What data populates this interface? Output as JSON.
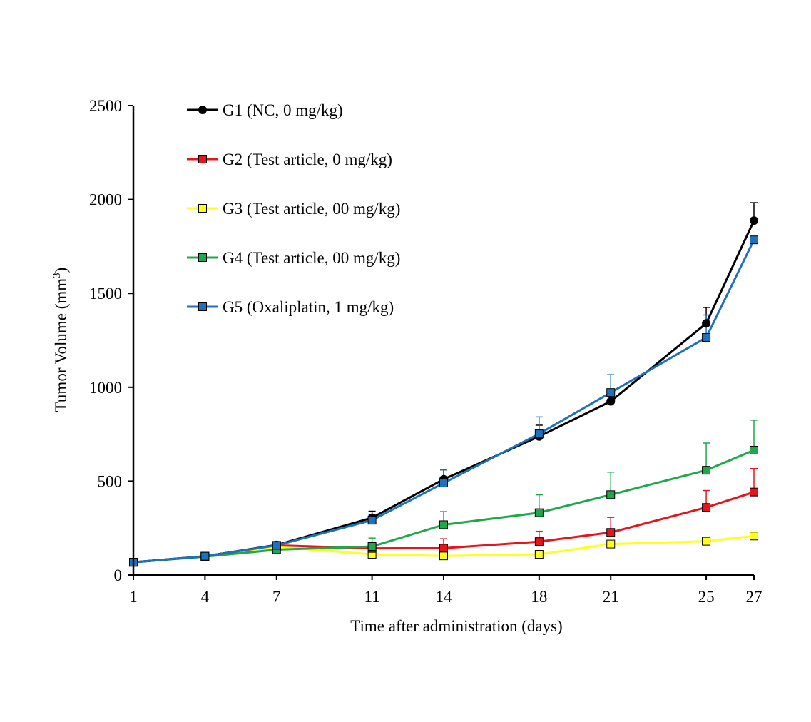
{
  "chart_data": {
    "type": "line",
    "title": "",
    "xlabel": "Time after administration (days)",
    "ylabel": "Tumor Volume (mm³)",
    "ylabel_main": "Tumor Volume (mm",
    "ylabel_sup": "3",
    "ylabel_end": ")",
    "x": [
      1,
      4,
      7,
      11,
      14,
      18,
      21,
      25,
      27
    ],
    "x_tick_labels": [
      "1",
      "4",
      "7",
      "11",
      "14",
      "18",
      "21",
      "25",
      "27"
    ],
    "ylim": [
      0,
      2500
    ],
    "y_ticks": [
      0,
      500,
      1000,
      1500,
      2000,
      2500
    ],
    "y_tick_labels": [
      "0",
      "500",
      "1000",
      "1500",
      "2000",
      "2500"
    ],
    "grid": false,
    "legend_position": "top-left",
    "series": [
      {
        "name": "G1 (NC, 0 mg/kg)",
        "color": "#000000",
        "marker": "circle",
        "marker_fill": "#000000",
        "values": [
          68,
          100,
          160,
          305,
          510,
          738,
          925,
          1340,
          1888
        ],
        "error": [
          0,
          0,
          0,
          35,
          50,
          60,
          0,
          85,
          95
        ]
      },
      {
        "name": "G2 (Test article, 0 mg/kg)",
        "color": "#e8141b",
        "marker": "square",
        "marker_fill": "#e8141b",
        "values": [
          68,
          100,
          158,
          142,
          143,
          178,
          227,
          360,
          442
        ],
        "error": [
          0,
          0,
          0,
          0,
          50,
          55,
          80,
          90,
          125
        ]
      },
      {
        "name": "G3 (Test article, 00 mg/kg)",
        "color": "#ffff1a",
        "marker": "square",
        "marker_fill": "#ffff1a",
        "values": [
          68,
          100,
          150,
          110,
          102,
          110,
          165,
          180,
          208
        ],
        "error": [
          0,
          0,
          0,
          0,
          0,
          0,
          0,
          0,
          0
        ]
      },
      {
        "name": "G4 (Test article, 00 mg/kg)",
        "color": "#1fa84a",
        "marker": "square",
        "marker_fill": "#1fa84a",
        "values": [
          68,
          98,
          135,
          152,
          268,
          332,
          428,
          558,
          665
        ],
        "error": [
          0,
          0,
          0,
          45,
          70,
          95,
          120,
          145,
          160
        ]
      },
      {
        "name": "G5 (Oxaliplatin, 1 mg/kg)",
        "color": "#1e72bd",
        "marker": "square",
        "marker_fill": "#1e72bd",
        "values": [
          68,
          100,
          158,
          292,
          490,
          752,
          972,
          1265,
          1785
        ],
        "error": [
          0,
          0,
          0,
          30,
          70,
          90,
          95,
          120,
          0
        ]
      }
    ]
  }
}
